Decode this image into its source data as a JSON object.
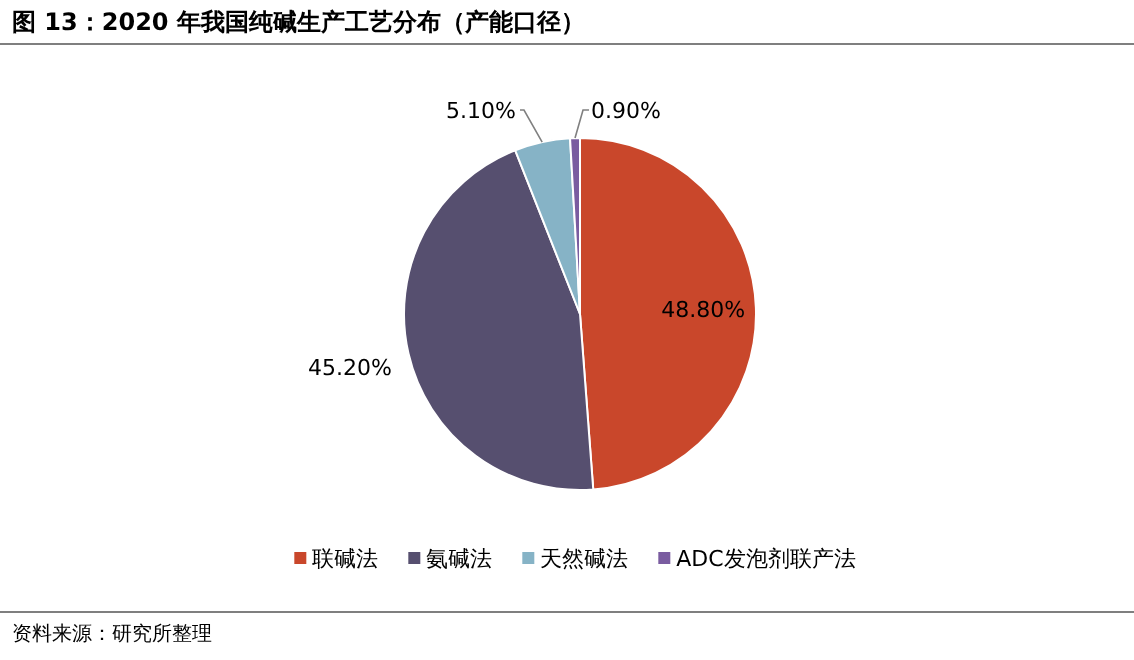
{
  "chart_data": {
    "type": "pie",
    "title": "图 13：2020 年我国纯碱生产工艺分布（产能口径）",
    "categories": [
      "联碱法",
      "氨碱法",
      "天然碱法",
      "ADC发泡剂联产法"
    ],
    "values": [
      48.8,
      45.2,
      5.1,
      0.9
    ],
    "colors": [
      "#c9472b",
      "#564f6f",
      "#86b3c6",
      "#7a5ca0"
    ],
    "value_labels": [
      "48.80%",
      "45.20%",
      "5.10%",
      "0.90%"
    ],
    "legend": "bottom",
    "annotations": [
      "资料来源：研究所整理"
    ]
  }
}
